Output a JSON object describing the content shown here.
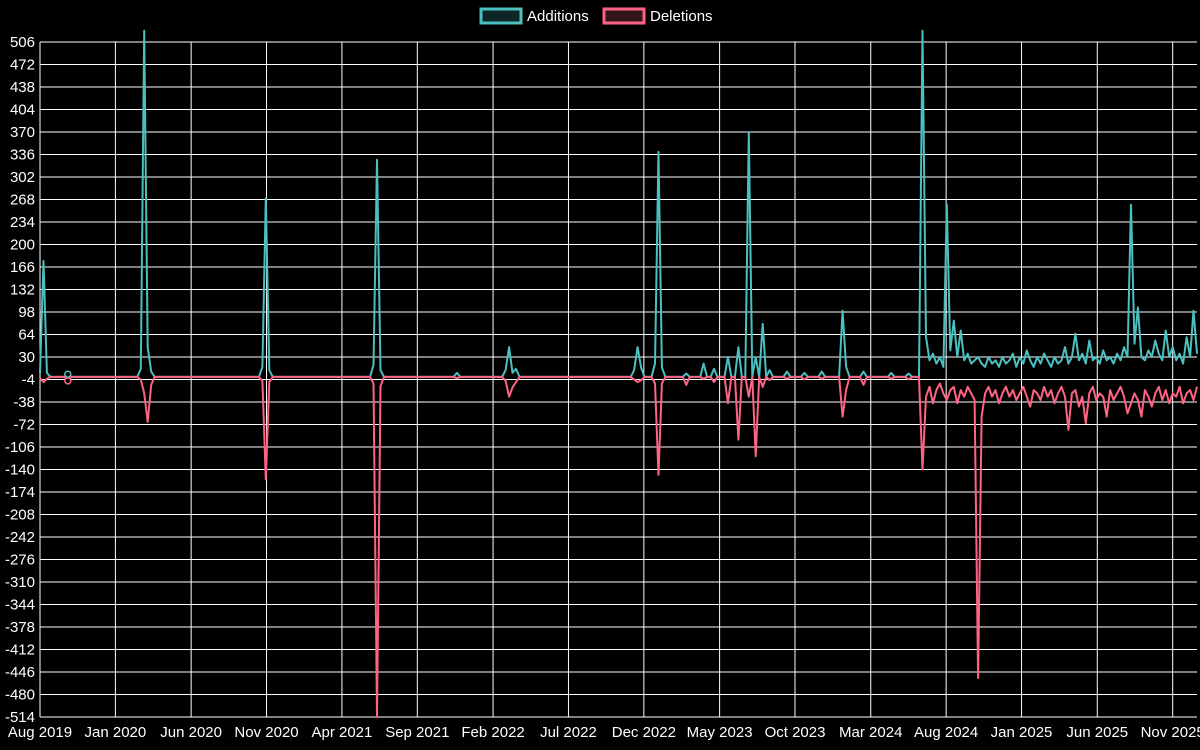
{
  "legend": {
    "additions": "Additions",
    "deletions": "Deletions"
  },
  "colors": {
    "background": "#000000",
    "grid": "#ffffff",
    "text": "#ffffff",
    "additions": "#4bc0c0",
    "additions_fill": "rgba(75,192,192,0.2)",
    "deletions": "#ff6384",
    "deletions_fill": "rgba(255,99,132,0.2)"
  },
  "chart_data": {
    "type": "line",
    "title": "",
    "xlabel": "",
    "ylabel": "",
    "legend_position": "top-center",
    "grid": true,
    "y_axis": {
      "min": -514,
      "max": 506,
      "step": 34
    },
    "y_ticks": [
      506,
      472,
      438,
      404,
      370,
      336,
      302,
      268,
      234,
      200,
      166,
      132,
      98,
      64,
      30,
      -4,
      -38,
      -72,
      -106,
      -140,
      -174,
      -208,
      -242,
      -276,
      -310,
      -344,
      -378,
      -412,
      -446,
      -480,
      -514
    ],
    "x_tick_labels": [
      "Aug 2019",
      "Jan 2020",
      "Jun 2020",
      "Nov 2020",
      "Apr 2021",
      "Sep 2021",
      "Feb 2022",
      "Jul 2022",
      "Dec 2022",
      "May 2023",
      "Oct 2023",
      "Mar 2024",
      "Aug 2024",
      "Jan 2025",
      "Jun 2025",
      "Nov 2025"
    ],
    "x_tick_weeks": [
      0,
      21.7,
      43.5,
      65.2,
      86.9,
      108.6,
      130.4,
      152.1,
      173.8,
      195.6,
      217.3,
      239.1,
      260.8,
      282.5,
      304.3,
      326
    ],
    "num_weeks": 334,
    "series_names": [
      "Additions",
      "Deletions"
    ],
    "weekly_values": {
      "0": [
        5,
        -2
      ],
      "1": [
        175,
        -8
      ],
      "2": [
        6,
        -3
      ],
      "8": [
        4,
        -6
      ],
      "29": [
        12,
        -4
      ],
      "30": [
        523,
        -25
      ],
      "31": [
        45,
        -68
      ],
      "32": [
        8,
        -12
      ],
      "64": [
        15,
        -6
      ],
      "65": [
        270,
        -155
      ],
      "66": [
        10,
        -8
      ],
      "96": [
        18,
        -10
      ],
      "97": [
        328,
        -514
      ],
      "98": [
        10,
        -14
      ],
      "120": [
        6,
        -2
      ],
      "134": [
        10,
        -6
      ],
      "135": [
        45,
        -30
      ],
      "136": [
        6,
        -16
      ],
      "137": [
        12,
        -8
      ],
      "171": [
        10,
        -4
      ],
      "172": [
        45,
        -8
      ],
      "173": [
        14,
        -5
      ],
      "177": [
        20,
        -10
      ],
      "178": [
        340,
        -148
      ],
      "179": [
        14,
        -10
      ],
      "186": [
        5,
        -12
      ],
      "191": [
        20,
        -3
      ],
      "194": [
        12,
        -8
      ],
      "198": [
        30,
        -40
      ],
      "201": [
        45,
        -95
      ],
      "204": [
        370,
        -30
      ],
      "206": [
        30,
        -120
      ],
      "208": [
        80,
        -15
      ],
      "210": [
        10,
        -5
      ],
      "215": [
        8,
        -3
      ],
      "220": [
        6,
        -4
      ],
      "225": [
        8,
        -3
      ],
      "231": [
        100,
        -60
      ],
      "232": [
        15,
        -20
      ],
      "237": [
        8,
        -12
      ],
      "245": [
        6,
        -3
      ],
      "250": [
        5,
        -4
      ],
      "254": [
        523,
        -140
      ],
      "255": [
        60,
        -30
      ],
      "256": [
        25,
        -15
      ],
      "257": [
        35,
        -40
      ],
      "258": [
        20,
        -20
      ],
      "259": [
        30,
        -10
      ],
      "260": [
        15,
        -25
      ],
      "261": [
        260,
        -35
      ],
      "262": [
        40,
        -20
      ],
      "263": [
        85,
        -15
      ],
      "264": [
        30,
        -40
      ],
      "265": [
        70,
        -20
      ],
      "266": [
        25,
        -30
      ],
      "267": [
        35,
        -15
      ],
      "268": [
        20,
        -25
      ],
      "269": [
        25,
        -35
      ],
      "270": [
        30,
        -455
      ],
      "271": [
        20,
        -60
      ],
      "272": [
        15,
        -25
      ],
      "273": [
        30,
        -15
      ],
      "274": [
        20,
        -30
      ],
      "275": [
        25,
        -20
      ],
      "276": [
        15,
        -40
      ],
      "277": [
        30,
        -25
      ],
      "278": [
        20,
        -15
      ],
      "279": [
        25,
        -30
      ],
      "280": [
        35,
        -20
      ],
      "281": [
        15,
        -35
      ],
      "282": [
        30,
        -25
      ],
      "283": [
        20,
        -15
      ],
      "284": [
        40,
        -30
      ],
      "285": [
        25,
        -45
      ],
      "286": [
        15,
        -20
      ],
      "287": [
        30,
        -25
      ],
      "288": [
        20,
        -35
      ],
      "289": [
        35,
        -15
      ],
      "290": [
        25,
        -30
      ],
      "291": [
        15,
        -20
      ],
      "292": [
        30,
        -40
      ],
      "293": [
        20,
        -25
      ],
      "294": [
        25,
        -15
      ],
      "295": [
        45,
        -30
      ],
      "296": [
        20,
        -80
      ],
      "297": [
        30,
        -25
      ],
      "298": [
        65,
        -20
      ],
      "299": [
        25,
        -45
      ],
      "300": [
        35,
        -30
      ],
      "301": [
        20,
        -70
      ],
      "302": [
        55,
        -25
      ],
      "303": [
        25,
        -15
      ],
      "304": [
        30,
        -35
      ],
      "305": [
        20,
        -25
      ],
      "306": [
        40,
        -30
      ],
      "307": [
        25,
        -60
      ],
      "308": [
        30,
        -20
      ],
      "309": [
        20,
        -35
      ],
      "310": [
        35,
        -25
      ],
      "311": [
        25,
        -15
      ],
      "312": [
        45,
        -30
      ],
      "313": [
        30,
        -55
      ],
      "314": [
        260,
        -40
      ],
      "315": [
        50,
        -25
      ],
      "316": [
        105,
        -35
      ],
      "317": [
        30,
        -60
      ],
      "318": [
        25,
        -20
      ],
      "319": [
        40,
        -30
      ],
      "320": [
        30,
        -45
      ],
      "321": [
        55,
        -25
      ],
      "322": [
        35,
        -15
      ],
      "323": [
        25,
        -35
      ],
      "324": [
        70,
        -20
      ],
      "325": [
        30,
        -40
      ],
      "326": [
        45,
        -25
      ],
      "327": [
        25,
        -30
      ],
      "328": [
        35,
        -15
      ],
      "329": [
        20,
        -40
      ],
      "330": [
        60,
        -25
      ],
      "331": [
        30,
        -20
      ],
      "332": [
        100,
        -35
      ],
      "333": [
        35,
        -15
      ]
    },
    "markers": [
      {
        "week": 8,
        "series": "additions",
        "value": 4
      },
      {
        "week": 8,
        "series": "deletions",
        "value": -6
      }
    ]
  }
}
